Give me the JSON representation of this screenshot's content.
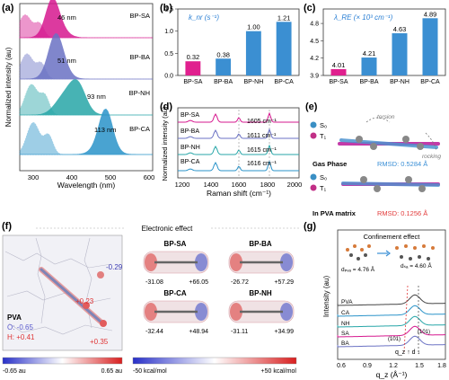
{
  "panel_labels": {
    "a": "(a)",
    "b": "(b)",
    "c": "(c)",
    "d": "(d)",
    "e": "(e)",
    "f": "(f)",
    "g": "(g)"
  },
  "colors": {
    "sa": "#d6188f",
    "ba": "#6b72c4",
    "nh": "#27a6a8",
    "ca": "#2a93c9",
    "bar_sa": "#e0208e",
    "bar_other": "#3b8fd2",
    "rmsd_gas": "#3a8fd6",
    "rmsd_pva": "#e23b3b"
  },
  "panel_a": {
    "ylabel": "Normalized intensity (au)",
    "xlabel": "Wavelength (nm)",
    "ticks": [
      "300",
      "400",
      "500",
      "600"
    ],
    "labels": [
      "BP-SA",
      "BP-BA",
      "BP-NH",
      "BP-CA"
    ],
    "shifts": [
      "46 nm",
      "51 nm",
      "93 nm",
      "113 nm"
    ]
  },
  "panel_d": {
    "ylabel": "Normalized intensity (au)",
    "xlabel": "Raman shift (cm⁻¹)",
    "ticks": [
      "1200",
      "1400",
      "1600",
      "1800",
      "2000"
    ],
    "labels": [
      "BP-SA",
      "BP-BA",
      "BP-NH",
      "BP-CA"
    ],
    "peaks": [
      "1605 cm⁻¹",
      "1611 cm⁻¹",
      "1615 cm⁻¹",
      "1616 cm⁻¹"
    ]
  },
  "chart_data": [
    {
      "type": "bar",
      "title": "k_nr (s⁻¹)",
      "categories": [
        "BP-SA",
        "BP-BA",
        "BP-NH",
        "BP-CA"
      ],
      "values": [
        0.32,
        0.38,
        1.0,
        1.21
      ],
      "value_labels": [
        "0.32",
        "0.38",
        "1.00",
        "1.21"
      ],
      "yticks": [
        "0.0",
        "0.5",
        "1.0",
        "1.5"
      ],
      "ylim": [
        0,
        1.5
      ]
    },
    {
      "type": "bar",
      "title": "λ_RE (× 10³ cm⁻¹)",
      "categories": [
        "BP-SA",
        "BP-BA",
        "BP-NH",
        "BP-CA"
      ],
      "values": [
        4.01,
        4.21,
        4.63,
        4.89
      ],
      "value_labels": [
        "4.01",
        "4.21",
        "4.63",
        "4.89"
      ],
      "yticks": [
        "3.9",
        "4.2",
        "4.5",
        "4.8"
      ],
      "ylim": [
        3.9,
        5.05
      ]
    }
  ],
  "panel_e": {
    "torsion": "torsion",
    "rocking": "rocking",
    "s0": "S₀",
    "t1": "T₁",
    "gas_title": "Gas Phase",
    "gas_rmsd": "RMSD: 0.5284 Å",
    "pva_title": "In PVA matrix",
    "pva_rmsd": "RMSD: 0.1256 Å"
  },
  "panel_f": {
    "header": "Electronic effect",
    "pva": "PVA",
    "o_charge": "O: -0.65",
    "h_charge": "H: +0.41",
    "c1": "-0.29",
    "c2": "+0.23",
    "c3": "+0.35",
    "scale_left": [
      "-0.65 au",
      "0.65 au"
    ],
    "scale_right": [
      "-50 kcal/mol",
      "+50 kcal/mol"
    ],
    "molecules": [
      {
        "name": "BP-SA",
        "left": "-31.08",
        "right": "+66.05"
      },
      {
        "name": "BP-BA",
        "left": "-26.72",
        "right": "+57.29"
      },
      {
        "name": "BP-CA",
        "left": "-32.44",
        "right": "+48.94"
      },
      {
        "name": "BP-NH",
        "left": "-31.11",
        "right": "+34.99"
      }
    ]
  },
  "panel_g": {
    "header": "Confinement effect",
    "d_pva": "dₚᵥₐ = 4.76 Å",
    "d_sa": "dₛₐ = 4.60 Å",
    "ylabel": "Intensity (au)",
    "xlabel": "q_z (Å⁻¹)",
    "ticks": [
      "0.6",
      "0.9",
      "1.2",
      "1.5",
      "1.8"
    ],
    "labels": [
      "PVA",
      "CA",
      "NH",
      "SA",
      "BA"
    ],
    "hkl1": "(101)",
    "hkl2": "(101)",
    "qz_note": "q_z ↑ d ↓"
  }
}
